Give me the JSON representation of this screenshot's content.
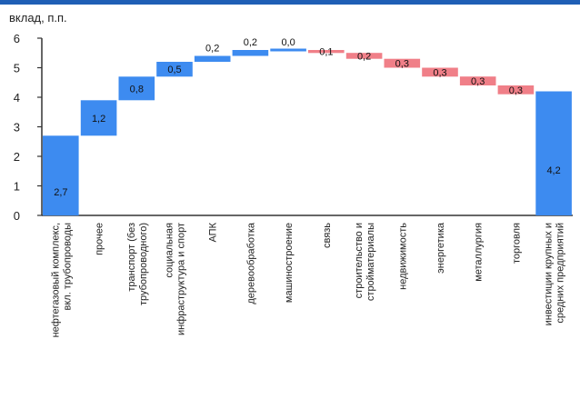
{
  "chart_data": {
    "type": "waterfall",
    "ylabel": "вклад, п.п.",
    "ylim": [
      0,
      6
    ],
    "yticks": [
      0,
      1,
      2,
      3,
      4,
      5,
      6
    ],
    "grid": false,
    "categories": [
      "нефтегазовый комплекс, вкл. трубопроводы",
      "прочее",
      "транспорт (без трубопроводного)",
      "социальная инфраструктура и спорт",
      "АПК",
      "деревообработка",
      "машиностроение",
      "связь",
      "строительство и стройматериалы",
      "недвижимость",
      "энергетика",
      "металлургия",
      "торговля",
      "инвестиции крупных и средних предприятий"
    ],
    "values": [
      2.7,
      1.2,
      0.8,
      0.5,
      0.2,
      0.2,
      0.0,
      -0.1,
      -0.2,
      -0.3,
      -0.3,
      -0.3,
      -0.3,
      4.2
    ],
    "data_labels": [
      "2,7",
      "1,2",
      "0,8",
      "0,5",
      "0,2",
      "0,2",
      "0,0",
      "0,1",
      "0,2",
      "0,3",
      "0,3",
      "0,3",
      "0,3",
      "4,2"
    ],
    "bar_kind": [
      "total",
      "delta",
      "delta",
      "delta",
      "delta",
      "delta",
      "delta",
      "delta",
      "delta",
      "delta",
      "delta",
      "delta",
      "delta",
      "total"
    ],
    "colors": {
      "positive": "#3d8bf0",
      "negative": "#f07f88",
      "total": "#3d8bf0",
      "header": "#1f5fb5"
    }
  }
}
